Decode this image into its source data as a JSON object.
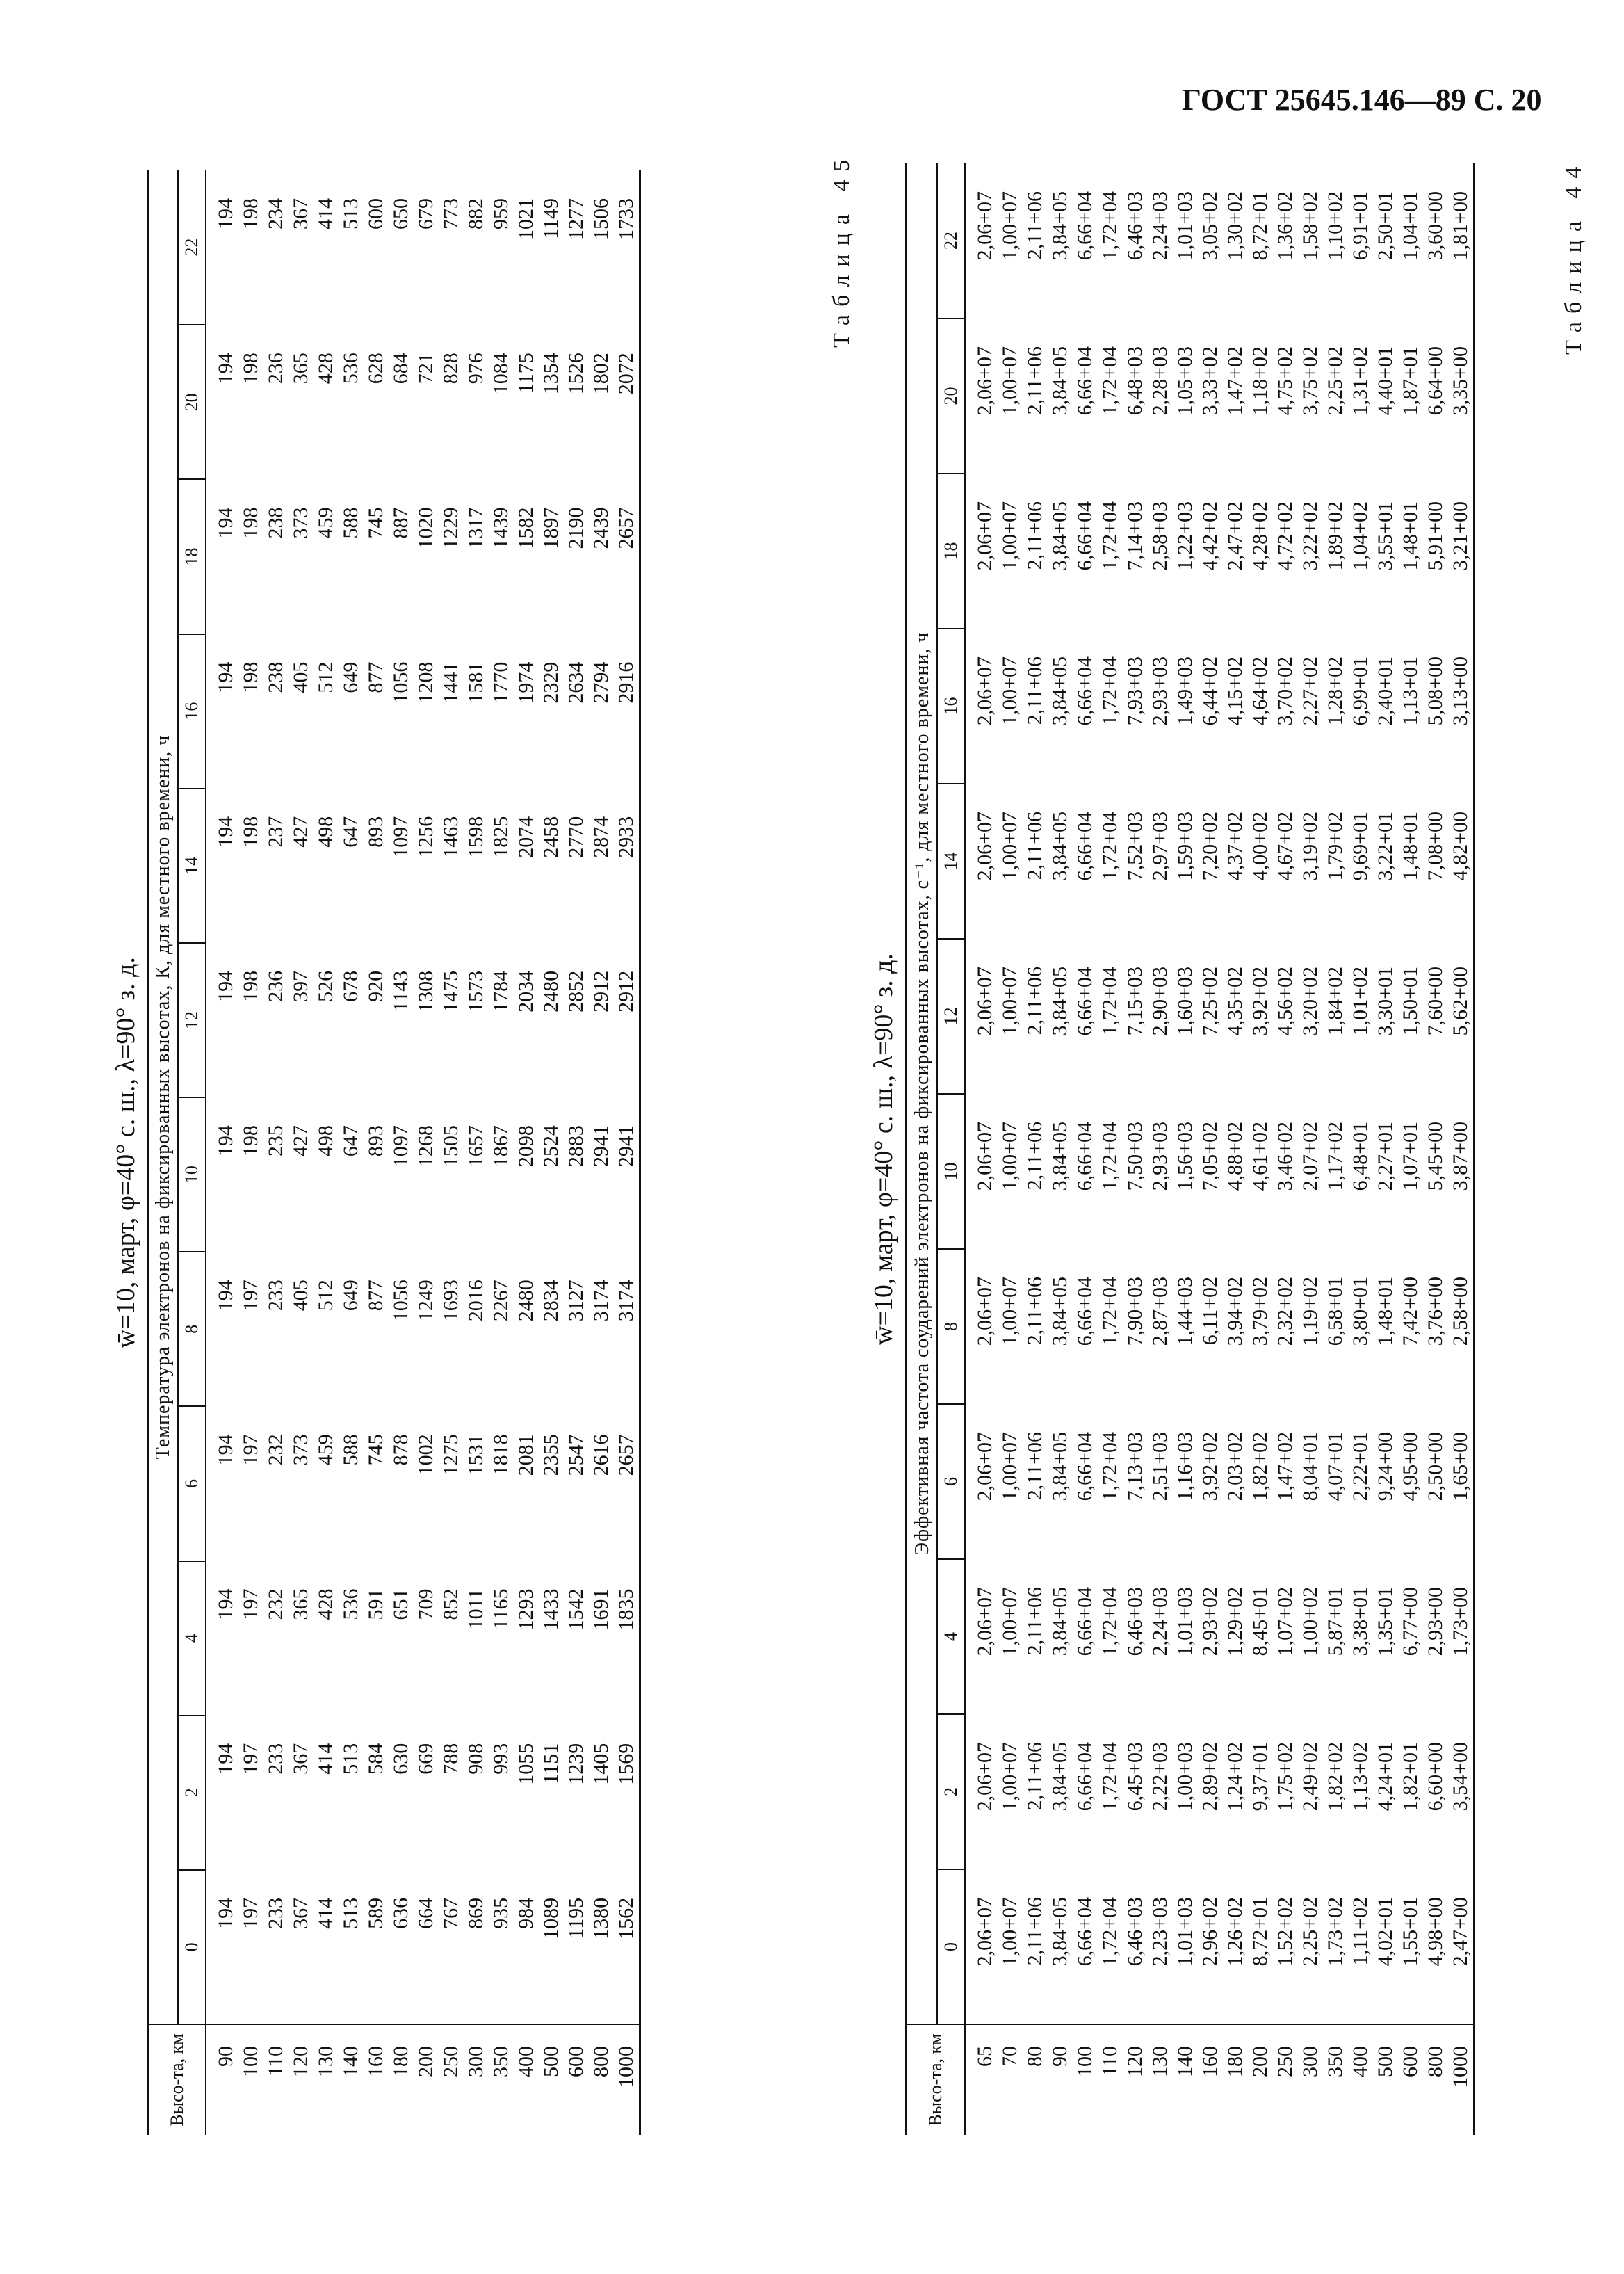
{
  "header": {
    "title": "ГОСТ 25645.146—89 С. 20"
  },
  "tables": [
    {
      "label": "Таблица 44",
      "title": "w̄=10, март, φ=40° с. ш., λ=90° з. д.",
      "row_header": "Высо-та, км",
      "group_header": "Температура электронов на фиксированных высотах, К, для местного времени, ч",
      "heights": [
        "90",
        "100",
        "110",
        "120",
        "130",
        "140",
        "160",
        "180",
        "200",
        "250",
        "300",
        "350",
        "400",
        "500",
        "600",
        "800",
        "1000"
      ],
      "columns": [
        {
          "hour": "0",
          "values": [
            "194",
            "197",
            "233",
            "367",
            "414",
            "513",
            "589",
            "636",
            "664",
            "767",
            "869",
            "935",
            "984",
            "1089",
            "1195",
            "1380",
            "1562"
          ]
        },
        {
          "hour": "2",
          "values": [
            "194",
            "197",
            "233",
            "367",
            "414",
            "513",
            "584",
            "630",
            "669",
            "788",
            "908",
            "993",
            "1055",
            "1151",
            "1239",
            "1405",
            "1569"
          ]
        },
        {
          "hour": "4",
          "values": [
            "194",
            "197",
            "232",
            "365",
            "428",
            "536",
            "591",
            "651",
            "709",
            "852",
            "1011",
            "1165",
            "1293",
            "1433",
            "1542",
            "1691",
            "1835"
          ]
        },
        {
          "hour": "6",
          "values": [
            "194",
            "197",
            "232",
            "373",
            "459",
            "588",
            "745",
            "878",
            "1002",
            "1275",
            "1531",
            "1818",
            "2081",
            "2355",
            "2547",
            "2616",
            "2657"
          ]
        },
        {
          "hour": "8",
          "values": [
            "194",
            "197",
            "233",
            "405",
            "512",
            "649",
            "877",
            "1056",
            "1249",
            "1693",
            "2016",
            "2267",
            "2480",
            "2834",
            "3127",
            "3174",
            "3174"
          ]
        },
        {
          "hour": "10",
          "values": [
            "194",
            "198",
            "235",
            "427",
            "498",
            "647",
            "893",
            "1097",
            "1268",
            "1505",
            "1657",
            "1867",
            "2098",
            "2524",
            "2883",
            "2941",
            "2941"
          ]
        },
        {
          "hour": "12",
          "values": [
            "194",
            "198",
            "236",
            "397",
            "526",
            "678",
            "920",
            "1143",
            "1308",
            "1475",
            "1573",
            "1784",
            "2034",
            "2480",
            "2852",
            "2912",
            "2912"
          ]
        },
        {
          "hour": "14",
          "values": [
            "194",
            "198",
            "237",
            "427",
            "498",
            "647",
            "893",
            "1097",
            "1256",
            "1463",
            "1598",
            "1825",
            "2074",
            "2458",
            "2770",
            "2874",
            "2933"
          ]
        },
        {
          "hour": "16",
          "values": [
            "194",
            "198",
            "238",
            "405",
            "512",
            "649",
            "877",
            "1056",
            "1208",
            "1441",
            "1581",
            "1770",
            "1974",
            "2329",
            "2634",
            "2794",
            "2916"
          ]
        },
        {
          "hour": "18",
          "values": [
            "194",
            "198",
            "238",
            "373",
            "459",
            "588",
            "745",
            "887",
            "1020",
            "1229",
            "1317",
            "1439",
            "1582",
            "1897",
            "2190",
            "2439",
            "2657"
          ]
        },
        {
          "hour": "20",
          "values": [
            "194",
            "198",
            "236",
            "365",
            "428",
            "536",
            "628",
            "684",
            "721",
            "828",
            "976",
            "1084",
            "1175",
            "1354",
            "1526",
            "1802",
            "2072"
          ]
        },
        {
          "hour": "22",
          "values": [
            "194",
            "198",
            "234",
            "367",
            "414",
            "513",
            "600",
            "650",
            "679",
            "773",
            "882",
            "959",
            "1021",
            "1149",
            "1277",
            "1506",
            "1733"
          ]
        }
      ]
    },
    {
      "label": "Таблица 45",
      "title": "w̄=10, март, φ=40° с. ш., λ=90° з. д.",
      "row_header": "Высо-та, км",
      "group_header": "Эффективная частота соударений электронов на фиксированных высотах, с⁻¹, для местного времени, ч",
      "heights": [
        "65",
        "70",
        "80",
        "90",
        "100",
        "110",
        "120",
        "130",
        "140",
        "160",
        "180",
        "200",
        "250",
        "300",
        "350",
        "400",
        "500",
        "600",
        "800",
        "1000"
      ],
      "columns": [
        {
          "hour": "0",
          "values": [
            "2,06+07",
            "1,00+07",
            "2,11+06",
            "3,84+05",
            "6,66+04",
            "1,72+04",
            "6,46+03",
            "2,23+03",
            "1,01+03",
            "2,96+02",
            "1,26+02",
            "8,72+01",
            "1,52+02",
            "2,25+02",
            "1,73+02",
            "1,11+02",
            "4,02+01",
            "1,55+01",
            "4,98+00",
            "2,47+00"
          ]
        },
        {
          "hour": "2",
          "values": [
            "2,06+07",
            "1,00+07",
            "2,11+06",
            "3,84+05",
            "6,66+04",
            "1,72+04",
            "6,45+03",
            "2,22+03",
            "1,00+03",
            "2,89+02",
            "1,24+02",
            "9,37+01",
            "1,75+02",
            "2,49+02",
            "1,82+02",
            "1,13+02",
            "4,24+01",
            "1,82+01",
            "6,60+00",
            "3,54+00"
          ]
        },
        {
          "hour": "4",
          "values": [
            "2,06+07",
            "1,00+07",
            "2,11+06",
            "3,84+05",
            "6,66+04",
            "1,72+04",
            "6,46+03",
            "2,24+03",
            "1,01+03",
            "2,93+02",
            "1,29+02",
            "8,45+01",
            "1,07+02",
            "1,00+02",
            "5,87+01",
            "3,38+01",
            "1,35+01",
            "6,77+00",
            "2,93+00",
            "1,73+00"
          ]
        },
        {
          "hour": "6",
          "values": [
            "2,06+07",
            "1,00+07",
            "2,11+06",
            "3,84+05",
            "6,66+04",
            "1,72+04",
            "7,13+03",
            "2,51+03",
            "1,16+03",
            "3,92+02",
            "2,03+02",
            "1,82+02",
            "1,47+02",
            "8,04+01",
            "4,07+01",
            "2,22+01",
            "9,24+00",
            "4,95+00",
            "2,50+00",
            "1,65+00"
          ]
        },
        {
          "hour": "8",
          "values": [
            "2,06+07",
            "1,00+07",
            "2,11+06",
            "3,84+05",
            "6,66+04",
            "1,72+04",
            "7,90+03",
            "2,87+03",
            "1,44+03",
            "6,11+02",
            "3,94+02",
            "3,79+02",
            "2,32+02",
            "1,19+02",
            "6,58+01",
            "3,80+01",
            "1,48+01",
            "7,42+00",
            "3,76+00",
            "2,58+00"
          ]
        },
        {
          "hour": "10",
          "values": [
            "2,06+07",
            "1,00+07",
            "2,11+06",
            "3,84+05",
            "6,66+04",
            "1,72+04",
            "7,50+03",
            "2,93+03",
            "1,56+03",
            "7,05+02",
            "4,88+02",
            "4,61+02",
            "3,46+02",
            "2,07+02",
            "1,17+02",
            "6,48+01",
            "2,27+01",
            "1,07+01",
            "5,45+00",
            "3,87+00"
          ]
        },
        {
          "hour": "12",
          "values": [
            "2,06+07",
            "1,00+07",
            "2,11+06",
            "3,84+05",
            "6,66+04",
            "1,72+04",
            "7,15+03",
            "2,90+03",
            "1,60+03",
            "7,25+02",
            "4,35+02",
            "3,92+02",
            "4,56+02",
            "3,20+02",
            "1,84+02",
            "1,01+02",
            "3,30+01",
            "1,50+01",
            "7,60+00",
            "5,62+00"
          ]
        },
        {
          "hour": "14",
          "values": [
            "2,06+07",
            "1,00+07",
            "2,11+06",
            "3,84+05",
            "6,66+04",
            "1,72+04",
            "7,52+03",
            "2,97+03",
            "1,59+03",
            "7,20+02",
            "4,37+02",
            "4,00+02",
            "4,67+02",
            "3,19+02",
            "1,79+02",
            "9,69+01",
            "3,22+01",
            "1,48+01",
            "7,08+00",
            "4,82+00"
          ]
        },
        {
          "hour": "16",
          "values": [
            "2,06+07",
            "1,00+07",
            "2,11+06",
            "3,84+05",
            "6,66+04",
            "1,72+04",
            "7,93+03",
            "2,93+03",
            "1,49+03",
            "6,44+02",
            "4,15+02",
            "4,64+02",
            "3,70+02",
            "2,27+02",
            "1,28+02",
            "6,99+01",
            "2,40+01",
            "1,13+01",
            "5,08+00",
            "3,13+00"
          ]
        },
        {
          "hour": "18",
          "values": [
            "2,06+07",
            "1,00+07",
            "2,11+06",
            "3,84+05",
            "6,66+04",
            "1,72+04",
            "7,14+03",
            "2,58+03",
            "1,22+03",
            "4,42+02",
            "2,47+02",
            "4,28+02",
            "4,72+02",
            "3,22+02",
            "1,89+02",
            "1,04+02",
            "3,55+01",
            "1,48+01",
            "5,91+00",
            "3,21+00"
          ]
        },
        {
          "hour": "20",
          "values": [
            "2,06+07",
            "1,00+07",
            "2,11+06",
            "3,84+05",
            "6,66+04",
            "1,72+04",
            "6,48+03",
            "2,28+03",
            "1,05+03",
            "3,33+02",
            "1,47+02",
            "1,18+02",
            "4,75+02",
            "3,75+02",
            "2,25+02",
            "1,31+02",
            "4,40+01",
            "1,87+01",
            "6,64+00",
            "3,35+00"
          ]
        },
        {
          "hour": "22",
          "values": [
            "2,06+07",
            "1,00+07",
            "2,11+06",
            "3,84+05",
            "6,66+04",
            "1,72+04",
            "6,46+03",
            "2,24+03",
            "1,01+03",
            "3,05+02",
            "1,30+02",
            "8,72+01",
            "1,36+02",
            "1,58+02",
            "1,10+02",
            "6,91+01",
            "2,50+01",
            "1,04+01",
            "3,60+00",
            "1,81+00"
          ]
        }
      ]
    }
  ]
}
